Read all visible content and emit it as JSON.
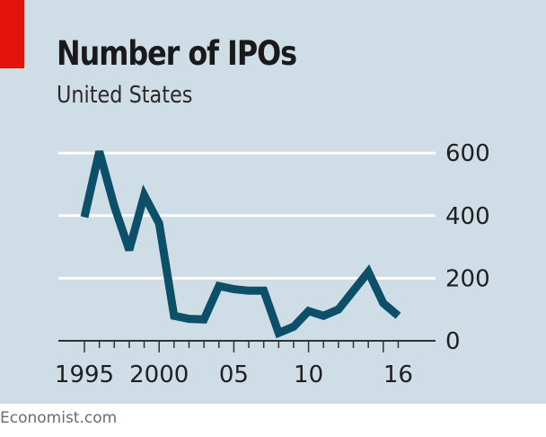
{
  "header": {
    "title": "Number of IPOs",
    "subtitle": "United States"
  },
  "footer": {
    "source": "Economist.com"
  },
  "colors": {
    "background": "#cfdde6",
    "accent_tag": "#e3120b",
    "line": "#0b5068",
    "gridline": "#ffffff",
    "axis": "#333333"
  },
  "chart_data": {
    "type": "line",
    "title": "Number of IPOs",
    "subtitle": "United States",
    "xlabel": "",
    "ylabel": "",
    "x": [
      1995,
      1996,
      1997,
      1998,
      1999,
      2000,
      2001,
      2002,
      2003,
      2004,
      2005,
      2006,
      2007,
      2008,
      2009,
      2010,
      2011,
      2012,
      2013,
      2014,
      2015,
      2016
    ],
    "series": [
      {
        "name": "Number of IPOs",
        "values": [
          395,
          605,
          430,
          290,
          465,
          375,
          80,
          70,
          68,
          175,
          165,
          160,
          160,
          25,
          45,
          95,
          80,
          100,
          160,
          220,
          120,
          80
        ]
      }
    ],
    "xlim": [
      1994,
      2019
    ],
    "ylim": [
      0,
      600
    ],
    "yticks": [
      0,
      200,
      400,
      600
    ],
    "ytick_labels": [
      "0",
      "200",
      "400",
      "600"
    ],
    "xticks_major": [
      1995,
      2000,
      2005,
      2010,
      2016
    ],
    "xtick_labels": [
      "1995",
      "2000",
      "05",
      "10",
      "16"
    ],
    "xticks_minor": [
      1995,
      1996,
      1997,
      1998,
      1999,
      2000,
      2001,
      2002,
      2003,
      2004,
      2005,
      2006,
      2007,
      2008,
      2009,
      2010,
      2011,
      2012,
      2013,
      2014,
      2015,
      2016
    ],
    "grid": "horizontal",
    "yaxis_side": "right",
    "legend": "none"
  }
}
